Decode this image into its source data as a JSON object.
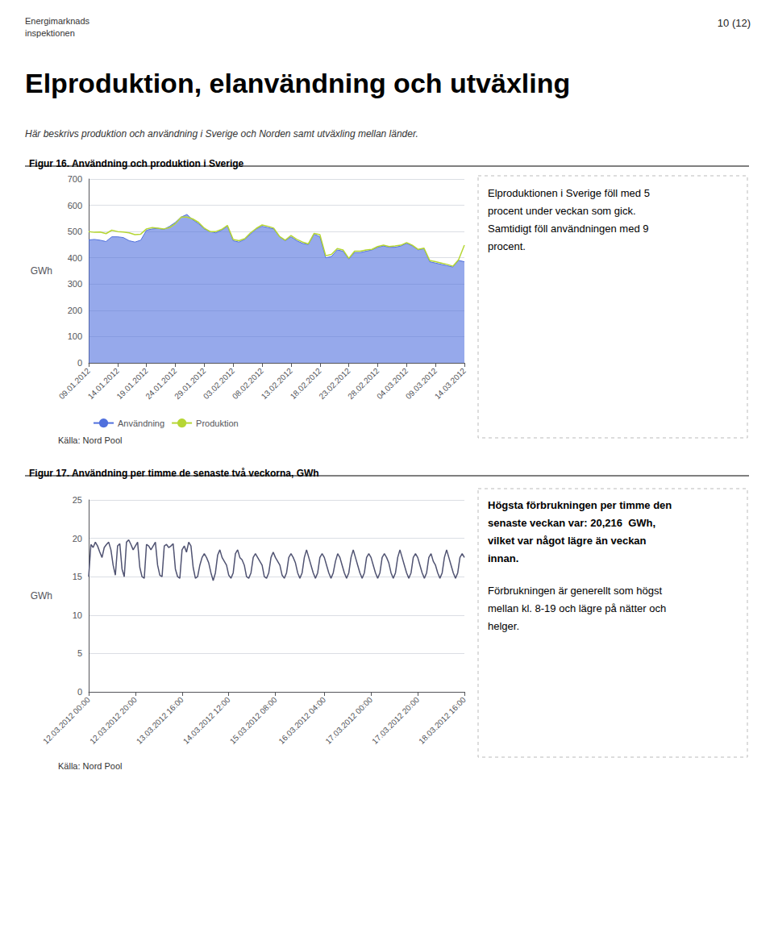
{
  "chart_data": [
    {
      "type": "line",
      "title": "Figur 16. Användning och produktion i Sverige",
      "ylabel": "GWh",
      "ylim": [
        0,
        700
      ],
      "yticks": [
        0,
        100,
        200,
        300,
        400,
        500,
        600,
        700
      ],
      "grid": true,
      "legend": "lower left",
      "categories": [
        "09.01.2012",
        null,
        null,
        null,
        null,
        "14.01.2012",
        null,
        null,
        null,
        null,
        "19.01.2012",
        null,
        null,
        null,
        null,
        "24.01.2012",
        null,
        null,
        null,
        null,
        "29.01.2012",
        null,
        null,
        null,
        null,
        "03.02.2012",
        null,
        null,
        null,
        null,
        "08.02.2012",
        null,
        null,
        null,
        null,
        "13.02.2012",
        null,
        null,
        null,
        null,
        "18.02.2012",
        null,
        null,
        null,
        null,
        "23.02.2012",
        null,
        null,
        null,
        null,
        "28.02.2012",
        null,
        null,
        null,
        null,
        "04.03.2012",
        null,
        null,
        null,
        null,
        "09.03.2012",
        null,
        null,
        null,
        null,
        "14.03.2012"
      ],
      "series": [
        {
          "name": "Användning",
          "type": "area",
          "values": [
            468,
            470,
            467,
            462,
            480,
            480,
            477,
            465,
            460,
            467,
            505,
            510,
            512,
            508,
            520,
            535,
            555,
            565,
            545,
            530,
            510,
            500,
            495,
            505,
            520,
            465,
            460,
            470,
            490,
            510,
            520,
            515,
            510,
            480,
            465,
            480,
            465,
            455,
            450,
            490,
            480,
            400,
            405,
            430,
            425,
            395,
            420,
            420,
            425,
            430,
            440,
            445,
            440,
            440,
            445,
            455,
            445,
            430,
            435,
            385,
            380,
            375,
            370,
            365,
            390,
            385
          ]
        },
        {
          "name": "Produktion",
          "type": "line",
          "values": [
            500,
            497,
            498,
            492,
            505,
            500,
            498,
            495,
            488,
            490,
            510,
            515,
            513,
            510,
            515,
            530,
            555,
            555,
            548,
            535,
            513,
            500,
            500,
            508,
            523,
            470,
            465,
            473,
            495,
            512,
            525,
            520,
            513,
            482,
            467,
            485,
            470,
            460,
            453,
            493,
            488,
            408,
            413,
            435,
            430,
            398,
            425,
            425,
            430,
            432,
            443,
            448,
            443,
            445,
            448,
            458,
            448,
            432,
            437,
            390,
            385,
            380,
            375,
            368,
            393,
            448
          ]
        }
      ],
      "annotations": [
        "Energimarknads",
        "inspektionen",
        "10 (12)",
        "Elproduktion, elanvändning och utväxling",
        "Här beskrivs produktion och användning i Sverige och Norden samt utväxling mellan länder.",
        "Elproduktionen i Sverige föll med 5",
        "procent under veckan som gick.",
        "Samtidigt föll användningen med 9",
        "procent.",
        "Källa: Nord Pool"
      ]
    },
    {
      "type": "line",
      "title": "Figur 17. Användning per timme de senaste två veckorna, GWh",
      "ylabel": "GWh",
      "ylim": [
        0,
        25
      ],
      "yticks": [
        0,
        5,
        10,
        15,
        20,
        25
      ],
      "grid": true,
      "categories": [
        "12.03.2012 00:00",
        null,
        null,
        null,
        null,
        null,
        null,
        null,
        null,
        null,
        null,
        null,
        null,
        null,
        null,
        null,
        null,
        null,
        null,
        null,
        null,
        "12.03.2012 20:00",
        null,
        null,
        null,
        null,
        null,
        null,
        null,
        null,
        null,
        null,
        null,
        null,
        null,
        null,
        null,
        null,
        null,
        null,
        null,
        null,
        "13.03.2012 16:00",
        null,
        null,
        null,
        null,
        null,
        null,
        null,
        null,
        null,
        null,
        null,
        null,
        null,
        null,
        null,
        null,
        null,
        null,
        null,
        null,
        "14.03.2012 12:00",
        null,
        null,
        null,
        null,
        null,
        null,
        null,
        null,
        null,
        null,
        null,
        null,
        null,
        null,
        null,
        null,
        null,
        null,
        null,
        null,
        "15.03.2012 08:00",
        null,
        null,
        null,
        null,
        null,
        null,
        null,
        null,
        null,
        null,
        null,
        null,
        null,
        null,
        null,
        null,
        null,
        null,
        null,
        null,
        null,
        "16.03.2012 04:00",
        null,
        null,
        null,
        null,
        null,
        null,
        null,
        null,
        null,
        null,
        null,
        null,
        null,
        null,
        null,
        null,
        null,
        null,
        null,
        null,
        "17.03.2012 00:00",
        null,
        null,
        null,
        null,
        null,
        null,
        null,
        null,
        null,
        null,
        null,
        null,
        null,
        null,
        null,
        null,
        null,
        null,
        null,
        null,
        "17.03.2012 20:00",
        null,
        null,
        null,
        null,
        null,
        null,
        null,
        null,
        null,
        null,
        null,
        null,
        null,
        null,
        null,
        null,
        null,
        null,
        null,
        null,
        "18.03.2012 16:00"
      ],
      "values": [
        15.0,
        19.2,
        18.8,
        19.5,
        19.0,
        18.2,
        17.5,
        18.8,
        19.2,
        19.5,
        18.5,
        16.5,
        15.2,
        19.0,
        19.3,
        16.0,
        15.0,
        19.5,
        19.8,
        19.2,
        18.5,
        19.0,
        19.5,
        16.2,
        15.0,
        14.8,
        19.2,
        19.0,
        18.5,
        19.0,
        19.5,
        16.5,
        15.2,
        15.0,
        19.0,
        19.2,
        18.8,
        19.0,
        19.3,
        16.0,
        15.0,
        14.8,
        18.5,
        19.0,
        18.2,
        19.5,
        19.0,
        16.2,
        14.8,
        15.0,
        16.5,
        17.5,
        18.0,
        17.5,
        16.8,
        15.5,
        14.5,
        15.5,
        17.8,
        18.5,
        17.5,
        17.0,
        16.5,
        15.2,
        14.8,
        15.5,
        18.0,
        18.5,
        17.5,
        17.2,
        16.5,
        15.0,
        14.8,
        15.5,
        17.5,
        18.0,
        17.5,
        17.0,
        16.5,
        15.0,
        14.8,
        15.5,
        17.5,
        18.2,
        17.5,
        17.0,
        16.5,
        15.2,
        14.8,
        15.5,
        17.5,
        18.0,
        17.5,
        16.8,
        15.5,
        14.8,
        15.5,
        17.5,
        18.5,
        17.5,
        16.5,
        15.5,
        14.8,
        15.5,
        17.5,
        18.0,
        17.5,
        16.5,
        15.5,
        14.8,
        15.5,
        17.0,
        18.0,
        17.5,
        16.5,
        15.5,
        14.8,
        15.5,
        17.5,
        18.5,
        17.5,
        16.5,
        15.5,
        14.8,
        15.5,
        17.5,
        18.0,
        17.5,
        16.5,
        15.5,
        14.8,
        15.5,
        17.5,
        18.0,
        17.5,
        16.8,
        15.5,
        14.8,
        15.5,
        17.5,
        18.5,
        17.5,
        16.5,
        15.5,
        14.8,
        15.5,
        17.5,
        18.0,
        17.5,
        16.5,
        15.5,
        14.8,
        15.5,
        17.5,
        18.0,
        17.0,
        16.5,
        15.5,
        14.8,
        15.5,
        17.5,
        18.5,
        17.5,
        16.5,
        15.5,
        14.8,
        15.5,
        17.5,
        18.0,
        17.5
      ],
      "annotations": [
        "Högsta förbrukningen per timme den",
        "senaste veckan var: 20,216  GWh,",
        "vilket var något lägre än veckan",
        "innan.",
        "Förbrukningen är generellt som högst",
        "mellan kl. 8-19 och lägre på nätter och",
        "helger.",
        "Källa: Nord Pool"
      ]
    }
  ]
}
